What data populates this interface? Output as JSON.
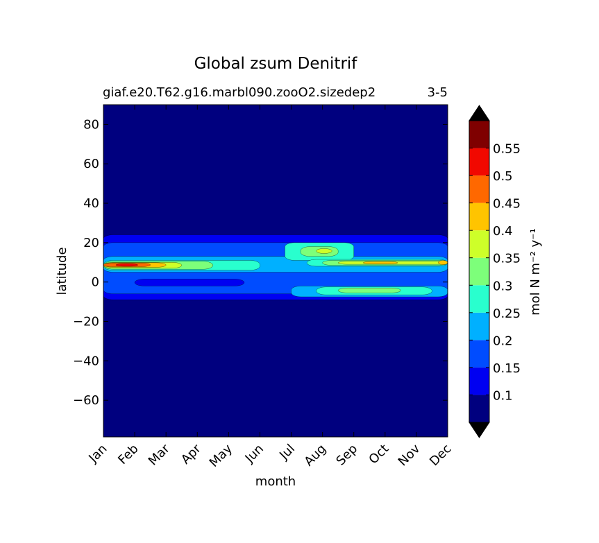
{
  "chart_data": {
    "type": "heatmap",
    "title": "Global zsum Denitrif",
    "subtitle_left": "giaf.e20.T62.g16.marbl090.zooO2.sizedep2",
    "subtitle_right": "3-5",
    "xlabel": "month",
    "ylabel": "latitude",
    "x_categories": [
      "Jan",
      "Feb",
      "Mar",
      "Apr",
      "May",
      "Jun",
      "Jul",
      "Aug",
      "Sep",
      "Oct",
      "Nov",
      "Dec"
    ],
    "y_ticks": [
      80,
      60,
      40,
      20,
      0,
      -20,
      -40,
      -60
    ],
    "ylim": [
      -78.6,
      90
    ],
    "colorbar": {
      "label": "mol N m⁻² y⁻¹",
      "levels": [
        0.05,
        0.1,
        0.15,
        0.2,
        0.25,
        0.3,
        0.35,
        0.4,
        0.45,
        0.5,
        0.55,
        0.6
      ],
      "tick_labels": [
        "0.1",
        "0.15",
        "0.2",
        "0.25",
        "0.3",
        "0.35",
        "0.4",
        "0.45",
        "0.5",
        "0.55"
      ],
      "colors": [
        "#00007f",
        "#0000f1",
        "#004cff",
        "#00b0ff",
        "#29ffce",
        "#7dff7a",
        "#ceff29",
        "#ffc400",
        "#ff6800",
        "#f10800",
        "#7f0000"
      ],
      "extend": "both",
      "under_color": "#000080",
      "over_color": "#000000"
    },
    "field_bands": [
      {
        "month_start": 1,
        "month_end": 12,
        "lat_min": -9,
        "lat_max": 24,
        "level": 0.12
      },
      {
        "month_start": 1,
        "month_end": 12,
        "lat_min": -6,
        "lat_max": 20,
        "level": 0.17
      },
      {
        "month_start": 1,
        "month_end": 12,
        "lat_min": 5,
        "lat_max": 13,
        "level": 0.22
      },
      {
        "month_start": 1,
        "month_end": 6,
        "lat_min": 6,
        "lat_max": 11,
        "level": 0.27
      },
      {
        "month_start": 1,
        "month_end": 4.5,
        "lat_min": 6.5,
        "lat_max": 10.5,
        "level": 0.32
      },
      {
        "month_start": 1,
        "month_end": 3.5,
        "lat_min": 7,
        "lat_max": 10,
        "level": 0.37
      },
      {
        "month_start": 1,
        "month_end": 3,
        "lat_min": 7.5,
        "lat_max": 9.8,
        "level": 0.42
      },
      {
        "month_start": 1,
        "month_end": 2.5,
        "lat_min": 7.8,
        "lat_max": 9.6,
        "level": 0.47
      },
      {
        "month_start": 1.4,
        "month_end": 2.1,
        "lat_min": 8,
        "lat_max": 9.3,
        "level": 0.52
      },
      {
        "month_start": 6.8,
        "month_end": 9,
        "lat_min": 11,
        "lat_max": 20,
        "level": 0.27
      },
      {
        "month_start": 7.3,
        "month_end": 8.5,
        "lat_min": 13,
        "lat_max": 18,
        "level": 0.32
      },
      {
        "month_start": 7.8,
        "month_end": 8.3,
        "lat_min": 14.5,
        "lat_max": 17,
        "level": 0.37
      },
      {
        "month_start": 7.5,
        "month_end": 12,
        "lat_min": 8,
        "lat_max": 11.5,
        "level": 0.27
      },
      {
        "month_start": 8,
        "month_end": 12,
        "lat_min": 8.5,
        "lat_max": 11,
        "level": 0.32
      },
      {
        "month_start": 8.5,
        "month_end": 12,
        "lat_min": 9,
        "lat_max": 10.5,
        "level": 0.37
      },
      {
        "month_start": 9.3,
        "month_end": 10.4,
        "lat_min": 9.2,
        "lat_max": 10.4,
        "level": 0.42
      },
      {
        "month_start": 11.7,
        "month_end": 12,
        "lat_min": 8.8,
        "lat_max": 11,
        "level": 0.42
      },
      {
        "month_start": 7,
        "month_end": 12,
        "lat_min": -7.5,
        "lat_max": -2,
        "level": 0.22
      },
      {
        "month_start": 7.8,
        "month_end": 11.5,
        "lat_min": -6.5,
        "lat_max": -2.5,
        "level": 0.27
      },
      {
        "month_start": 8.5,
        "month_end": 10.5,
        "lat_min": -5.5,
        "lat_max": -3,
        "level": 0.32
      },
      {
        "month_start": 2,
        "month_end": 5.5,
        "lat_min": -2,
        "lat_max": 1.5,
        "level": 0.12
      }
    ]
  }
}
